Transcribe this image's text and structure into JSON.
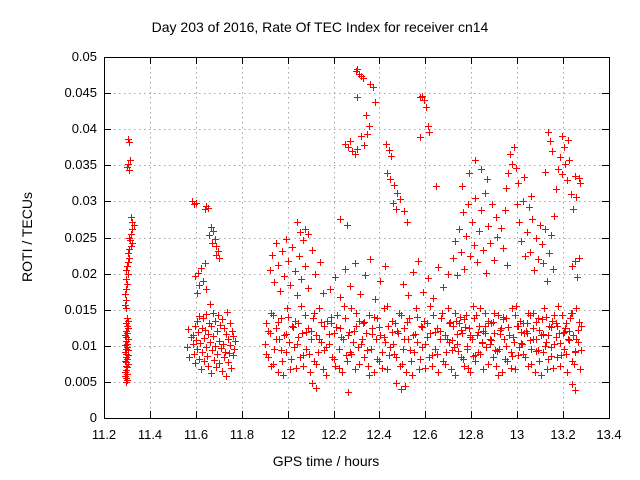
{
  "chart_data": {
    "type": "scatter",
    "title": "Day 203 of 2016, Rate Of TEC Index for receiver cn14",
    "xlabel": "GPS time / hours",
    "ylabel": "ROTI / TECUs",
    "xlim": [
      11.2,
      13.4
    ],
    "ylim": [
      0,
      0.05
    ],
    "grid": "dotted",
    "legend": "none",
    "marker": {
      "shape": "plus",
      "size": 7,
      "color": "#ff0000"
    },
    "xticks": {
      "values": [
        11.2,
        11.4,
        11.6,
        11.8,
        12.0,
        12.2,
        12.4,
        12.6,
        12.8,
        13.0,
        13.2,
        13.4
      ],
      "labels": [
        "11.2",
        "11.4",
        "11.6",
        "11.8",
        "12",
        "12.2",
        "12.4",
        "12.6",
        "12.8",
        "13",
        "13.2",
        "13.4"
      ]
    },
    "yticks": {
      "values": [
        0,
        0.005,
        0.01,
        0.015,
        0.02,
        0.025,
        0.03,
        0.035,
        0.04,
        0.045,
        0.05
      ],
      "labels": [
        "0",
        "0.005",
        "0.01",
        "0.015",
        "0.02",
        "0.025",
        "0.03",
        "0.035",
        "0.04",
        "0.045",
        "0.05"
      ]
    },
    "bands": [
      {
        "x_start": 11.9,
        "x_end": 13.279,
        "x_step": 0.007,
        "y_cycle": [
          0.0102,
          0.0131,
          0.0085,
          0.0118,
          0.0072,
          0.0143,
          0.0096,
          0.0124,
          0.0064,
          0.011,
          0.0138,
          0.0079,
          0.0115,
          0.0091,
          0.0152,
          0.0105,
          0.0068,
          0.0127,
          0.0098,
          0.0134
        ]
      },
      {
        "x_start": 11.904,
        "x_end": 13.279,
        "x_step": 0.011,
        "y_cycle": [
          0.0088,
          0.0121,
          0.0145,
          0.0075,
          0.0109,
          0.0133,
          0.0094,
          0.0059,
          0.0116,
          0.014,
          0.0082,
          0.0126,
          0.0069,
          0.0112,
          0.0155,
          0.0087,
          0.0119
        ]
      },
      {
        "x_start": 12.705,
        "x_end": 13.27,
        "x_step": 0.013,
        "y_cycle": [
          0.0131,
          0.0108,
          0.0146,
          0.0093,
          0.0122,
          0.0137,
          0.01,
          0.0115,
          0.0086,
          0.0142,
          0.0127,
          0.0104,
          0.0118
        ]
      }
    ],
    "points": [
      [
        11.303,
        0.0386
      ],
      [
        11.31,
        0.0382
      ],
      [
        11.312,
        0.0358
      ],
      [
        11.306,
        0.0352
      ],
      [
        11.301,
        0.0347
      ],
      [
        11.308,
        0.0344
      ],
      [
        11.318,
        0.0278
      ],
      [
        11.324,
        0.0272
      ],
      [
        11.329,
        0.0268
      ],
      [
        11.321,
        0.0262
      ],
      [
        11.316,
        0.0255
      ],
      [
        11.308,
        0.025
      ],
      [
        11.313,
        0.0246
      ],
      [
        11.32,
        0.0243
      ],
      [
        11.317,
        0.0238
      ],
      [
        11.311,
        0.0234
      ],
      [
        11.305,
        0.0228
      ],
      [
        11.309,
        0.0222
      ],
      [
        11.303,
        0.0216
      ],
      [
        11.3,
        0.0211
      ],
      [
        11.298,
        0.0205
      ],
      [
        11.304,
        0.02
      ],
      [
        11.296,
        0.0193
      ],
      [
        11.301,
        0.0186
      ],
      [
        11.294,
        0.0179
      ],
      [
        11.292,
        0.0172
      ],
      [
        11.297,
        0.0164
      ],
      [
        11.291,
        0.0157
      ],
      [
        11.295,
        0.0152
      ],
      [
        11.299,
        0.0139
      ],
      [
        11.303,
        0.0135
      ],
      [
        11.297,
        0.0131
      ],
      [
        11.301,
        0.0128
      ],
      [
        11.305,
        0.0124
      ],
      [
        11.295,
        0.0121
      ],
      [
        11.3,
        0.0118
      ],
      [
        11.293,
        0.0115
      ],
      [
        11.298,
        0.0112
      ],
      [
        11.304,
        0.0109
      ],
      [
        11.296,
        0.0106
      ],
      [
        11.302,
        0.0103
      ],
      [
        11.292,
        0.0101
      ],
      [
        11.299,
        0.0098
      ],
      [
        11.294,
        0.0096
      ],
      [
        11.306,
        0.0094
      ],
      [
        11.29,
        0.0091
      ],
      [
        11.297,
        0.0089
      ],
      [
        11.303,
        0.0087
      ],
      [
        11.295,
        0.0084
      ],
      [
        11.3,
        0.0082
      ],
      [
        11.292,
        0.0079
      ],
      [
        11.298,
        0.0077
      ],
      [
        11.305,
        0.0075
      ],
      [
        11.294,
        0.0072
      ],
      [
        11.301,
        0.007
      ],
      [
        11.296,
        0.0067
      ],
      [
        11.29,
        0.0064
      ],
      [
        11.299,
        0.0061
      ],
      [
        11.293,
        0.0058
      ],
      [
        11.297,
        0.0055
      ],
      [
        11.302,
        0.0052
      ],
      [
        11.295,
        0.005
      ],
      [
        11.582,
        0.0301
      ],
      [
        11.591,
        0.0296
      ],
      [
        11.602,
        0.0298
      ],
      [
        11.645,
        0.0294
      ],
      [
        11.652,
        0.0291
      ],
      [
        11.638,
        0.0289
      ],
      [
        11.668,
        0.0265
      ],
      [
        11.676,
        0.0259
      ],
      [
        11.659,
        0.0254
      ],
      [
        11.683,
        0.0248
      ],
      [
        11.672,
        0.0243
      ],
      [
        11.69,
        0.0238
      ],
      [
        11.697,
        0.0231
      ],
      [
        11.686,
        0.0226
      ],
      [
        11.703,
        0.0222
      ],
      [
        11.64,
        0.0214
      ],
      [
        11.621,
        0.0208
      ],
      [
        11.611,
        0.0201
      ],
      [
        11.598,
        0.0196
      ],
      [
        11.631,
        0.019
      ],
      [
        11.615,
        0.0184
      ],
      [
        11.645,
        0.0178
      ],
      [
        11.604,
        0.0173
      ],
      [
        11.66,
        0.0158
      ],
      [
        11.562,
        0.0098
      ],
      [
        11.567,
        0.0123
      ],
      [
        11.572,
        0.0085
      ],
      [
        11.578,
        0.0112
      ],
      [
        11.586,
        0.0102
      ],
      [
        11.589,
        0.0115
      ],
      [
        11.592,
        0.0089
      ],
      [
        11.595,
        0.0128
      ],
      [
        11.598,
        0.0076
      ],
      [
        11.601,
        0.0108
      ],
      [
        11.604,
        0.0135
      ],
      [
        11.607,
        0.0095
      ],
      [
        11.61,
        0.0119
      ],
      [
        11.613,
        0.0082
      ],
      [
        11.616,
        0.0141
      ],
      [
        11.619,
        0.0104
      ],
      [
        11.622,
        0.0068
      ],
      [
        11.625,
        0.0125
      ],
      [
        11.628,
        0.0092
      ],
      [
        11.631,
        0.0138
      ],
      [
        11.634,
        0.0111
      ],
      [
        11.637,
        0.0079
      ],
      [
        11.64,
        0.0122
      ],
      [
        11.643,
        0.0098
      ],
      [
        11.646,
        0.0144
      ],
      [
        11.649,
        0.0086
      ],
      [
        11.652,
        0.0117
      ],
      [
        11.655,
        0.0072
      ],
      [
        11.658,
        0.0131
      ],
      [
        11.661,
        0.0105
      ],
      [
        11.664,
        0.0062
      ],
      [
        11.667,
        0.0127
      ],
      [
        11.67,
        0.0094
      ],
      [
        11.673,
        0.0146
      ],
      [
        11.676,
        0.0113
      ],
      [
        11.679,
        0.0081
      ],
      [
        11.682,
        0.0134
      ],
      [
        11.685,
        0.01
      ],
      [
        11.688,
        0.007
      ],
      [
        11.691,
        0.012
      ],
      [
        11.694,
        0.0088
      ],
      [
        11.697,
        0.0142
      ],
      [
        11.7,
        0.0107
      ],
      [
        11.703,
        0.0076
      ],
      [
        11.706,
        0.0129
      ],
      [
        11.709,
        0.0097
      ],
      [
        11.712,
        0.0065
      ],
      [
        11.715,
        0.0137
      ],
      [
        11.718,
        0.0103
      ],
      [
        11.721,
        0.0084
      ],
      [
        11.724,
        0.0124
      ],
      [
        11.727,
        0.0092
      ],
      [
        11.73,
        0.0058
      ],
      [
        11.733,
        0.0116
      ],
      [
        11.736,
        0.0147
      ],
      [
        11.739,
        0.0078
      ],
      [
        11.742,
        0.011
      ],
      [
        11.745,
        0.009
      ],
      [
        11.748,
        0.0132
      ],
      [
        11.751,
        0.0101
      ],
      [
        11.754,
        0.0069
      ],
      [
        11.757,
        0.0121
      ],
      [
        11.76,
        0.0087
      ],
      [
        11.763,
        0.0113
      ],
      [
        11.766,
        0.0096
      ],
      [
        11.77,
        0.0106
      ],
      [
        12.296,
        0.048
      ],
      [
        12.304,
        0.0483
      ],
      [
        12.311,
        0.0477
      ],
      [
        12.318,
        0.0474
      ],
      [
        12.329,
        0.0471
      ],
      [
        12.359,
        0.0463
      ],
      [
        12.372,
        0.0458
      ],
      [
        12.302,
        0.0444
      ],
      [
        12.381,
        0.0438
      ],
      [
        12.34,
        0.042
      ],
      [
        12.353,
        0.0405
      ],
      [
        12.345,
        0.0393
      ],
      [
        12.318,
        0.0391
      ],
      [
        12.331,
        0.0378
      ],
      [
        12.252,
        0.038
      ],
      [
        12.262,
        0.0375
      ],
      [
        12.271,
        0.0383
      ],
      [
        12.282,
        0.037
      ],
      [
        12.292,
        0.0366
      ],
      [
        12.3,
        0.0372
      ],
      [
        12.428,
        0.0379
      ],
      [
        12.44,
        0.0371
      ],
      [
        12.452,
        0.0363
      ],
      [
        12.433,
        0.034
      ],
      [
        12.447,
        0.0331
      ],
      [
        12.462,
        0.0323
      ],
      [
        12.476,
        0.0312
      ],
      [
        12.49,
        0.0303
      ],
      [
        12.505,
        0.0287
      ],
      [
        12.519,
        0.0272
      ],
      [
        12.46,
        0.0298
      ],
      [
        12.472,
        0.029
      ],
      [
        12.578,
        0.0445
      ],
      [
        12.587,
        0.0446
      ],
      [
        12.595,
        0.044
      ],
      [
        12.603,
        0.0431
      ],
      [
        12.61,
        0.0404
      ],
      [
        12.617,
        0.0396
      ],
      [
        12.575,
        0.0389
      ],
      [
        12.648,
        0.0321
      ],
      [
        12.04,
        0.0272
      ],
      [
        12.052,
        0.0258
      ],
      [
        12.075,
        0.0262
      ],
      [
        12.088,
        0.0255
      ],
      [
        12.23,
        0.0275
      ],
      [
        12.258,
        0.0267
      ],
      [
        11.922,
        0.0205
      ],
      [
        11.931,
        0.0226
      ],
      [
        11.94,
        0.0189
      ],
      [
        11.949,
        0.0243
      ],
      [
        11.958,
        0.0212
      ],
      [
        11.967,
        0.0176
      ],
      [
        11.976,
        0.0231
      ],
      [
        11.985,
        0.0197
      ],
      [
        11.994,
        0.0248
      ],
      [
        12.003,
        0.0218
      ],
      [
        12.012,
        0.0184
      ],
      [
        12.021,
        0.0237
      ],
      [
        12.03,
        0.0203
      ],
      [
        12.039,
        0.017
      ],
      [
        12.048,
        0.0224
      ],
      [
        12.057,
        0.0192
      ],
      [
        12.066,
        0.0246
      ],
      [
        12.075,
        0.021
      ],
      [
        12.09,
        0.018
      ],
      [
        12.105,
        0.0232
      ],
      [
        12.12,
        0.0199
      ],
      [
        12.14,
        0.0216
      ],
      [
        12.155,
        0.0173
      ],
      [
        12.183,
        0.0178
      ],
      [
        12.205,
        0.0195
      ],
      [
        12.227,
        0.0168
      ],
      [
        12.249,
        0.0207
      ],
      [
        12.271,
        0.0183
      ],
      [
        12.293,
        0.0215
      ],
      [
        12.315,
        0.0172
      ],
      [
        12.337,
        0.0198
      ],
      [
        12.359,
        0.022
      ],
      [
        12.381,
        0.0165
      ],
      [
        12.403,
        0.019
      ],
      [
        12.425,
        0.0211
      ],
      [
        12.502,
        0.0186
      ],
      [
        12.524,
        0.017
      ],
      [
        12.546,
        0.0202
      ],
      [
        12.568,
        0.0218
      ],
      [
        12.59,
        0.0175
      ],
      [
        12.612,
        0.0194
      ],
      [
        12.634,
        0.0166
      ],
      [
        12.656,
        0.0209
      ],
      [
        12.678,
        0.0181
      ],
      [
        12.7,
        0.0199
      ],
      [
        12.722,
        0.0221
      ],
      [
        12.73,
        0.0245
      ],
      [
        12.738,
        0.0198
      ],
      [
        12.746,
        0.0262
      ],
      [
        12.754,
        0.023
      ],
      [
        12.762,
        0.0285
      ],
      [
        12.77,
        0.0207
      ],
      [
        12.778,
        0.0252
      ],
      [
        12.786,
        0.0296
      ],
      [
        12.794,
        0.0224
      ],
      [
        12.802,
        0.0271
      ],
      [
        12.81,
        0.024
      ],
      [
        12.818,
        0.0305
      ],
      [
        12.826,
        0.0216
      ],
      [
        12.834,
        0.0259
      ],
      [
        12.842,
        0.0288
      ],
      [
        12.85,
        0.0233
      ],
      [
        12.858,
        0.0312
      ],
      [
        12.866,
        0.0201
      ],
      [
        12.874,
        0.0266
      ],
      [
        12.882,
        0.0242
      ],
      [
        12.89,
        0.0297
      ],
      [
        12.898,
        0.0219
      ],
      [
        12.906,
        0.0278
      ],
      [
        12.914,
        0.0251
      ],
      [
        12.76,
        0.0322
      ],
      [
        12.792,
        0.0339
      ],
      [
        12.815,
        0.0358
      ],
      [
        12.842,
        0.0345
      ],
      [
        12.868,
        0.0331
      ],
      [
        12.93,
        0.0263
      ],
      [
        12.938,
        0.0235
      ],
      [
        12.946,
        0.0288
      ],
      [
        12.954,
        0.0212
      ],
      [
        12.962,
        0.034
      ],
      [
        12.97,
        0.0366
      ],
      [
        12.978,
        0.0352
      ],
      [
        12.986,
        0.0375
      ],
      [
        12.994,
        0.0346
      ],
      [
        13.002,
        0.0325
      ],
      [
        13.01,
        0.0272
      ],
      [
        13.018,
        0.0245
      ],
      [
        13.026,
        0.0301
      ],
      [
        13.034,
        0.0224
      ],
      [
        13.042,
        0.0257
      ],
      [
        13.05,
        0.0292
      ],
      [
        13.058,
        0.023
      ],
      [
        13.066,
        0.0276
      ],
      [
        13.074,
        0.0205
      ],
      [
        13.082,
        0.0249
      ],
      [
        13.09,
        0.022
      ],
      [
        13.098,
        0.0268
      ],
      [
        12.95,
        0.0318
      ],
      [
        12.999,
        0.0296
      ],
      [
        13.03,
        0.0334
      ],
      [
        13.06,
        0.0308
      ],
      [
        13.106,
        0.0241
      ],
      [
        13.114,
        0.0215
      ],
      [
        13.122,
        0.0262
      ],
      [
        13.13,
        0.019
      ],
      [
        13.138,
        0.0228
      ],
      [
        13.146,
        0.0253
      ],
      [
        13.154,
        0.0206
      ],
      [
        13.162,
        0.028
      ],
      [
        13.17,
        0.0317
      ],
      [
        13.178,
        0.0345
      ],
      [
        13.186,
        0.0362
      ],
      [
        13.194,
        0.0338
      ],
      [
        13.202,
        0.0376
      ],
      [
        13.21,
        0.0352
      ],
      [
        13.218,
        0.033
      ],
      [
        13.226,
        0.0358
      ],
      [
        13.234,
        0.031
      ],
      [
        13.242,
        0.0289
      ],
      [
        13.25,
        0.0335
      ],
      [
        13.258,
        0.0306
      ],
      [
        13.222,
        0.0385
      ],
      [
        13.196,
        0.039
      ],
      [
        13.24,
        0.021
      ],
      [
        13.252,
        0.0218
      ],
      [
        13.262,
        0.0195
      ],
      [
        13.268,
        0.0221
      ],
      [
        13.27,
        0.0332
      ],
      [
        13.274,
        0.0326
      ],
      [
        13.134,
        0.0396
      ],
      [
        13.142,
        0.0383
      ],
      [
        13.15,
        0.037
      ],
      [
        13.12,
        0.0341
      ],
      [
        12.108,
        0.0049
      ],
      [
        12.122,
        0.0042
      ],
      [
        12.262,
        0.0036
      ],
      [
        12.47,
        0.0049
      ],
      [
        12.492,
        0.004
      ],
      [
        12.51,
        0.0045
      ],
      [
        13.238,
        0.0047
      ],
      [
        13.252,
        0.0039
      ]
    ]
  },
  "colors": {
    "marker": "#ff0000",
    "grid": "#a6a6a6",
    "axis": "#000000",
    "background": "#ffffff"
  }
}
